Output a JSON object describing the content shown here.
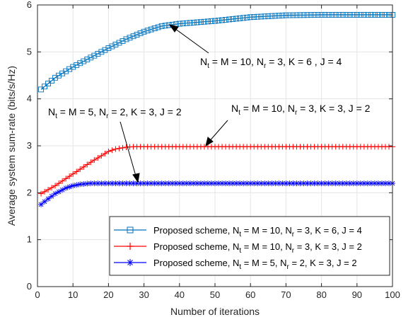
{
  "chart_data": {
    "type": "line",
    "xlabel": "Number of iterations",
    "ylabel": "Average system sum-rate (bits/s/Hz)",
    "xlim": [
      0,
      100
    ],
    "ylim": [
      0,
      6
    ],
    "xticks": [
      0,
      10,
      20,
      30,
      40,
      50,
      60,
      70,
      80,
      90,
      100
    ],
    "yticks": [
      0,
      1,
      2,
      3,
      4,
      5,
      6
    ],
    "grid": true,
    "legend_position": "bottom-right",
    "series": [
      {
        "legend": {
          "pre": "Proposed scheme, N",
          "sub1": "t",
          "mid1": " = M = 10, N",
          "sub2": "r",
          "post": " = 3, K = 6, J = 4"
        },
        "color": "#0072BD",
        "marker": "square",
        "x": [
          1,
          5,
          10,
          15,
          20,
          25,
          30,
          35,
          38,
          40,
          45,
          50,
          55,
          60,
          70,
          80,
          90,
          100
        ],
        "y": [
          4.2,
          4.45,
          4.68,
          4.88,
          5.08,
          5.27,
          5.43,
          5.55,
          5.58,
          5.6,
          5.63,
          5.66,
          5.7,
          5.74,
          5.78,
          5.79,
          5.79,
          5.79
        ]
      },
      {
        "legend": {
          "pre": "Proposed scheme, N",
          "sub1": "t",
          "mid1": " = M = 10, N",
          "sub2": "r",
          "post": " = 3, K = 3, J = 2"
        },
        "color": "#FF0000",
        "marker": "plus",
        "x": [
          1,
          5,
          10,
          15,
          20,
          22,
          25,
          27,
          30,
          40,
          50,
          60,
          70,
          80,
          90,
          100
        ],
        "y": [
          1.98,
          2.15,
          2.4,
          2.65,
          2.88,
          2.93,
          2.97,
          2.98,
          2.98,
          2.98,
          2.98,
          2.98,
          2.98,
          2.98,
          2.98,
          2.98
        ]
      },
      {
        "legend": {
          "pre": "Proposed scheme, N",
          "sub1": "t",
          "mid1": " = M = 5, N",
          "sub2": "r",
          "post": " = 2, K = 3, J = 2"
        },
        "color": "#0000FF",
        "marker": "star",
        "x": [
          1,
          3,
          5,
          8,
          10,
          12,
          15,
          20,
          30,
          40,
          50,
          60,
          70,
          80,
          90,
          100
        ],
        "y": [
          1.75,
          1.87,
          1.98,
          2.1,
          2.15,
          2.18,
          2.2,
          2.2,
          2.2,
          2.2,
          2.2,
          2.2,
          2.2,
          2.2,
          2.2,
          2.2
        ]
      }
    ],
    "annotations": [
      {
        "pre": "N",
        "sub1": "t",
        "mid1": " = M = 10, N",
        "sub2": "r",
        "post": " = 3, K = 6 , J = 4"
      },
      {
        "pre": "N",
        "sub1": "t",
        "mid1": " = M = 10, N",
        "sub2": "r",
        "post": " = 3, K = 3, J = 2"
      },
      {
        "pre": "N",
        "sub1": "t",
        "mid1": " = M = 5, N",
        "sub2": "r",
        "post": " = 2, K = 3, J = 2"
      }
    ]
  }
}
